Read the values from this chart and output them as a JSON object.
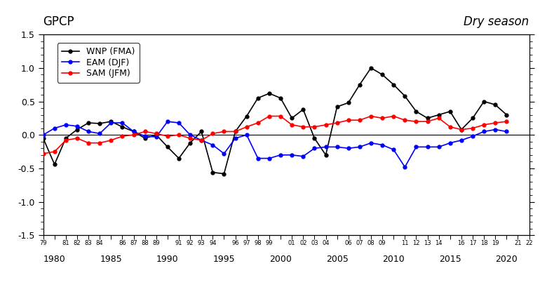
{
  "years": [
    1979,
    1980,
    1981,
    1982,
    1983,
    1984,
    1985,
    1986,
    1987,
    1988,
    1989,
    1990,
    1991,
    1992,
    1993,
    1994,
    1995,
    1996,
    1997,
    1998,
    1999,
    2000,
    2001,
    2002,
    2003,
    2004,
    2005,
    2006,
    2007,
    2008,
    2009,
    2010,
    2011,
    2012,
    2013,
    2014,
    2015,
    2016,
    2017,
    2018,
    2019,
    2020,
    2021,
    2022
  ],
  "WNP": [
    -0.05,
    -0.44,
    -0.05,
    0.08,
    0.18,
    0.17,
    0.2,
    0.12,
    0.05,
    -0.05,
    0.0,
    -0.18,
    -0.35,
    -0.12,
    0.05,
    -0.56,
    -0.58,
    0.05,
    0.28,
    0.55,
    0.62,
    0.55,
    0.25,
    0.38,
    -0.05,
    -0.3,
    0.42,
    0.48,
    0.75,
    1.0,
    0.9,
    0.75,
    0.58,
    0.35,
    0.25,
    0.3,
    0.35,
    0.08,
    0.25,
    0.5,
    0.45,
    0.3,
    null,
    null
  ],
  "EAM": [
    0.0,
    0.1,
    0.15,
    0.13,
    0.05,
    0.02,
    0.18,
    0.18,
    0.05,
    -0.02,
    -0.03,
    0.2,
    0.18,
    0.0,
    -0.08,
    -0.15,
    -0.28,
    -0.05,
    0.0,
    -0.35,
    -0.35,
    -0.3,
    -0.3,
    -0.32,
    -0.2,
    -0.18,
    -0.18,
    -0.2,
    -0.18,
    -0.12,
    -0.15,
    -0.22,
    -0.48,
    -0.18,
    -0.18,
    -0.18,
    -0.12,
    -0.08,
    -0.02,
    0.05,
    0.08,
    0.05,
    null,
    null
  ],
  "SAM": [
    -0.28,
    -0.25,
    -0.08,
    -0.05,
    -0.12,
    -0.12,
    -0.08,
    -0.02,
    0.0,
    0.05,
    0.02,
    -0.02,
    0.0,
    -0.05,
    -0.08,
    0.02,
    0.05,
    0.05,
    0.12,
    0.18,
    0.28,
    0.28,
    0.15,
    0.12,
    0.12,
    0.15,
    0.18,
    0.22,
    0.22,
    0.28,
    0.25,
    0.28,
    0.22,
    0.2,
    0.2,
    0.25,
    0.12,
    0.08,
    0.1,
    0.15,
    0.18,
    0.2,
    null,
    null
  ],
  "title_left": "GPCP",
  "title_right": "Dry season",
  "legend_entries": [
    "WNP (FMA)",
    "EAM (DJF)",
    "SAM (JFM)"
  ],
  "line_colors": [
    "#000000",
    "#0000ff",
    "#ff0000"
  ],
  "ylim": [
    -1.5,
    1.5
  ],
  "yticks": [
    -1.5,
    -1.0,
    -0.5,
    0.0,
    0.5,
    1.0,
    1.5
  ],
  "minor_ytick_step": 0.1,
  "background_color": "#ffffff",
  "xlim": [
    1979,
    2022
  ],
  "decade_ticks": [
    1980,
    1985,
    1990,
    1995,
    2000,
    2005,
    2010,
    2015,
    2020
  ],
  "decade_labels": [
    "1980",
    "1985",
    "1990",
    "1995",
    "2000",
    "2005",
    "2010",
    "2015",
    "2020"
  ],
  "grouped_tick_years": [
    1979,
    1981,
    1982,
    1983,
    1984,
    1986,
    1987,
    1988,
    1989,
    1991,
    1992,
    1993,
    1994,
    1996,
    1997,
    1998,
    1999,
    2001,
    2002,
    2003,
    2004,
    2006,
    2007,
    2008,
    2009,
    2011,
    2012,
    2013,
    2014,
    2016,
    2017,
    2018,
    2019,
    2021,
    2022
  ],
  "grouped_tick_labels": [
    "79",
    "81",
    "82",
    "83",
    "84",
    "86",
    "87",
    "88",
    "89",
    "91",
    "92",
    "93",
    "94",
    "96",
    "97",
    "98",
    "99",
    "01",
    "02",
    "03",
    "04",
    "06",
    "07",
    "08",
    "09",
    "11",
    "12",
    "13",
    "14",
    "16",
    "17",
    "18",
    "19",
    "21",
    "22"
  ]
}
